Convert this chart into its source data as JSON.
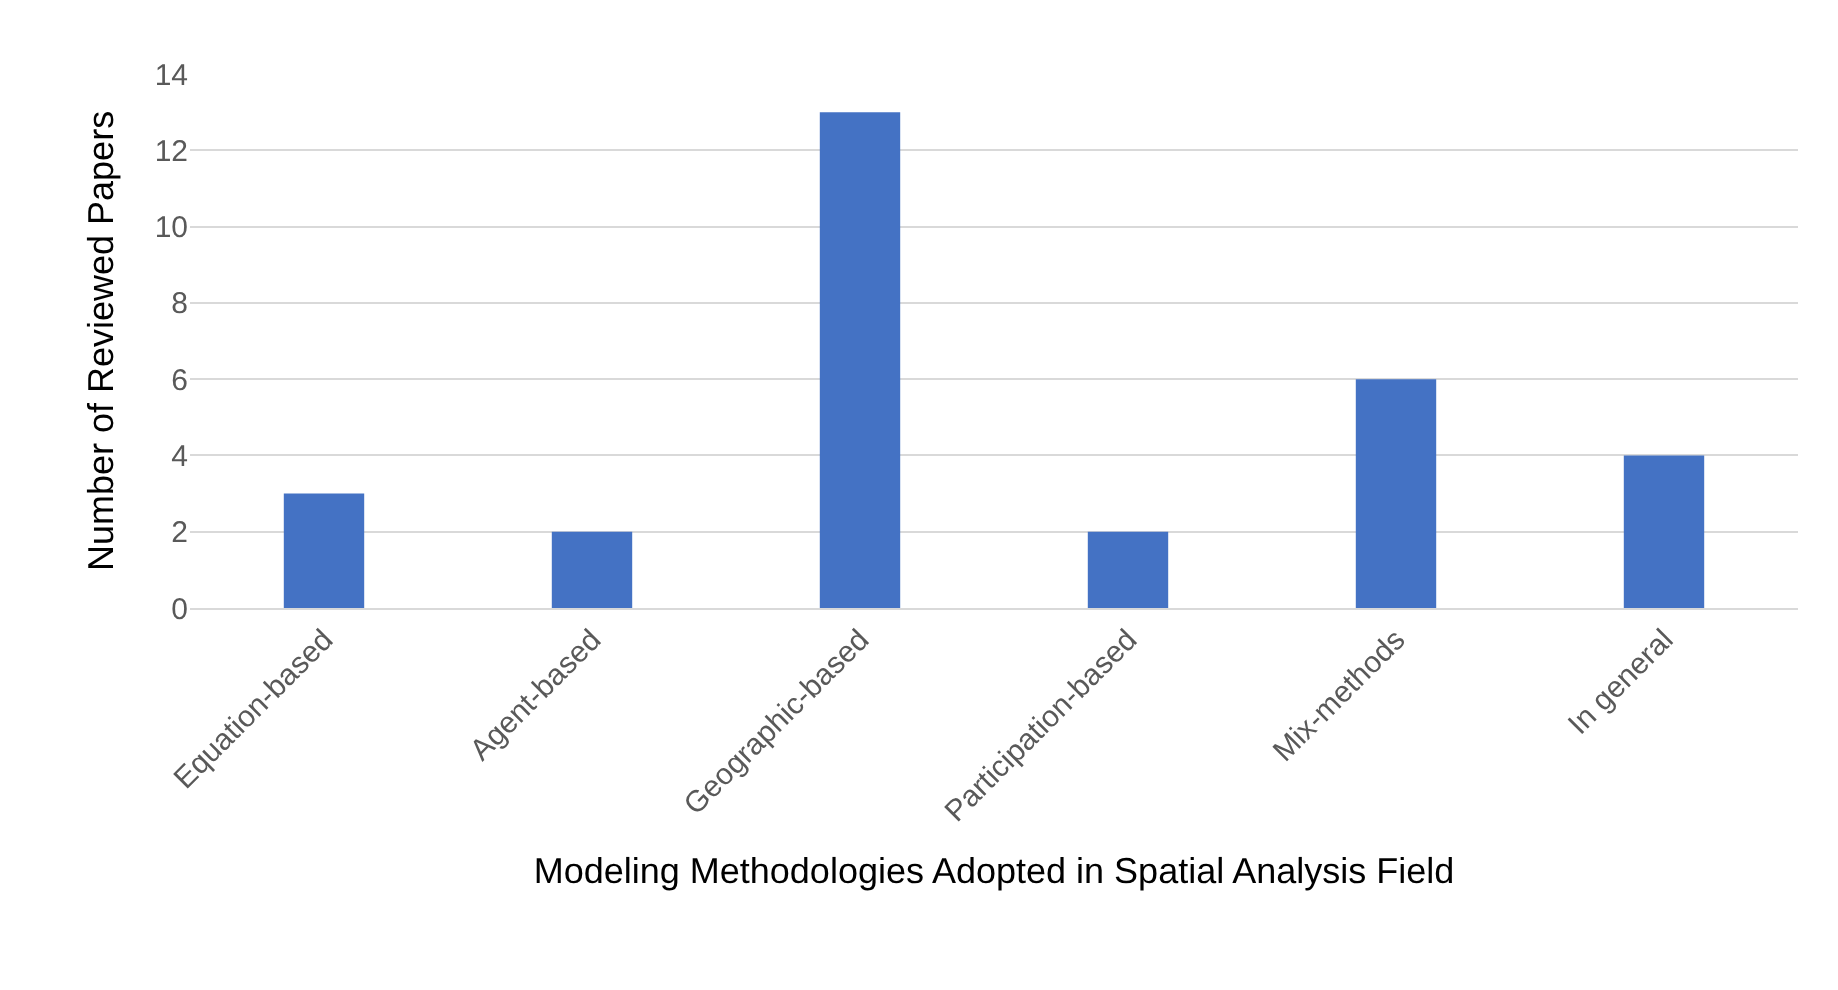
{
  "chart_data": {
    "type": "bar",
    "xlabel": "Modeling Methodologies Adopted in Spatial Analysis Field",
    "ylabel": "Number of Reviewed Papers",
    "categories": [
      "Equation-based",
      "Agent-based",
      "Geographic-based",
      "Participation-based",
      "Mix-methods",
      "In general"
    ],
    "values": [
      3,
      2,
      13,
      2,
      6,
      4
    ],
    "color": "#4472c4",
    "ylim": [
      0,
      14
    ],
    "yticks": [
      0,
      2,
      4,
      6,
      8,
      10,
      12,
      14
    ],
    "grid": "y"
  }
}
